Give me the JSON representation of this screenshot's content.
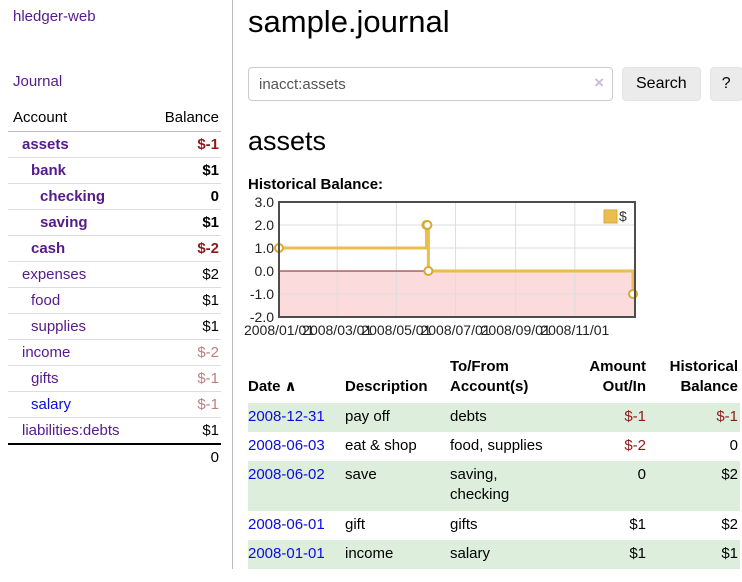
{
  "colors": {
    "link_purple": "#551a8b",
    "link_blue": "#0c0cdd",
    "negative_dark": "#8f1a1a",
    "negative_light": "#bd7f7f",
    "row_shade_green": "#ddeedd",
    "chart_line_gold": "#e9bd4e",
    "chart_marker_stroke": "#d9a933",
    "chart_negative_fill": "#fbdbdb",
    "chart_zero_line": "#8b1a1a",
    "chart_border": "#4d4d4d",
    "chart_grid": "#dddddd"
  },
  "sidebar": {
    "app_title": "hledger-web",
    "journal_label": "Journal",
    "accounts_table": {
      "headers": [
        "Account",
        "Balance"
      ],
      "rows": [
        {
          "name": "assets",
          "depth": 1,
          "bold": true,
          "name_style": "purple",
          "balance": "$-1",
          "balance_style": "neg-dark"
        },
        {
          "name": "bank",
          "depth": 2,
          "bold": true,
          "name_style": "purple",
          "balance": "$1",
          "balance_style": "plain"
        },
        {
          "name": "checking",
          "depth": 3,
          "bold": true,
          "name_style": "purple",
          "balance": "0",
          "balance_style": "plain"
        },
        {
          "name": "saving",
          "depth": 3,
          "bold": true,
          "name_style": "purple",
          "balance": "$1",
          "balance_style": "plain"
        },
        {
          "name": "cash",
          "depth": 2,
          "bold": true,
          "name_style": "purple",
          "balance": "$-2",
          "balance_style": "neg-dark"
        },
        {
          "name": "expenses",
          "depth": 1,
          "bold": false,
          "name_style": "purple",
          "balance": "$2",
          "balance_style": "plain"
        },
        {
          "name": "food",
          "depth": 2,
          "bold": false,
          "name_style": "purple",
          "balance": "$1",
          "balance_style": "plain"
        },
        {
          "name": "supplies",
          "depth": 2,
          "bold": false,
          "name_style": "purple",
          "balance": "$1",
          "balance_style": "plain"
        },
        {
          "name": "income",
          "depth": 1,
          "bold": false,
          "name_style": "purple",
          "balance": "$-2",
          "balance_style": "neg-light"
        },
        {
          "name": "gifts",
          "depth": 2,
          "bold": false,
          "name_style": "purple",
          "balance": "$-1",
          "balance_style": "neg-light"
        },
        {
          "name": "salary",
          "depth": 2,
          "bold": false,
          "name_style": "blue",
          "balance": "$-1",
          "balance_style": "neg-light"
        },
        {
          "name": "liabilities:debts",
          "depth": 1,
          "bold": false,
          "name_style": "purple",
          "balance": "$1",
          "balance_style": "plain"
        }
      ],
      "total": "0"
    }
  },
  "main": {
    "title": "sample.journal",
    "search": {
      "value": "inacct:assets",
      "clear_icon": "×",
      "search_button": "Search",
      "help_button": "?"
    },
    "account_heading": "assets",
    "chart_title": "Historical Balance:",
    "register": {
      "headers": [
        "Date",
        "Description",
        "To/From Account(s)",
        "Amount Out/In",
        "Historical Balance"
      ],
      "sort_caret": "∧",
      "rows": [
        {
          "date": "2008-12-31",
          "description": "pay off",
          "accounts": "debts",
          "amount": "$-1",
          "amount_neg": true,
          "balance": "$-1",
          "balance_neg": true,
          "shaded": true
        },
        {
          "date": "2008-06-03",
          "description": "eat & shop",
          "accounts": "food, supplies",
          "amount": "$-2",
          "amount_neg": true,
          "balance": "0",
          "balance_neg": false,
          "shaded": false
        },
        {
          "date": "2008-06-02",
          "description": "save",
          "accounts": "saving, checking",
          "amount": "0",
          "amount_neg": false,
          "balance": "$2",
          "balance_neg": false,
          "shaded": true
        },
        {
          "date": "2008-06-01",
          "description": "gift",
          "accounts": "gifts",
          "amount": "$1",
          "amount_neg": false,
          "balance": "$2",
          "balance_neg": false,
          "shaded": false
        },
        {
          "date": "2008-01-01",
          "description": "income",
          "accounts": "salary",
          "amount": "$1",
          "amount_neg": false,
          "balance": "$1",
          "balance_neg": false,
          "shaded": true
        }
      ]
    }
  },
  "chart_data": {
    "type": "line",
    "step": true,
    "title": "Historical Balance:",
    "legend": "$",
    "legend_position": "top-right",
    "x_domain": [
      "2008-01-01",
      "2009-01-01"
    ],
    "ylim": [
      -2,
      3
    ],
    "yticks": [
      {
        "value": 3,
        "label": "3.0"
      },
      {
        "value": 2,
        "label": "2.0"
      },
      {
        "value": 1,
        "label": "1.0"
      },
      {
        "value": 0,
        "label": "0.0"
      },
      {
        "value": -1,
        "label": "-1.0"
      },
      {
        "value": -2,
        "label": "-2.0"
      }
    ],
    "xticks": [
      {
        "date": "2008-01-01",
        "label": "2008/01/01"
      },
      {
        "date": "2008-03-01",
        "label": "2008/03/01"
      },
      {
        "date": "2008-05-01",
        "label": "2008/05/01"
      },
      {
        "date": "2008-07-01",
        "label": "2008/07/01"
      },
      {
        "date": "2008-09-01",
        "label": "2008/09/01"
      },
      {
        "date": "2008-11-01",
        "label": "2008/11/01"
      }
    ],
    "series": [
      {
        "name": "$",
        "points": [
          {
            "date": "2008-01-01",
            "value": 1
          },
          {
            "date": "2008-06-01",
            "value": 2
          },
          {
            "date": "2008-06-02",
            "value": 2
          },
          {
            "date": "2008-06-03",
            "value": 0
          },
          {
            "date": "2008-12-31",
            "value": -1
          }
        ]
      }
    ]
  }
}
